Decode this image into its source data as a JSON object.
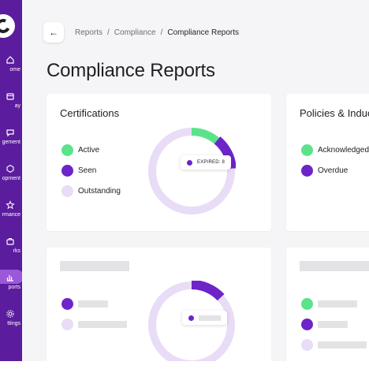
{
  "colors": {
    "sidebar": "#5b1c9e",
    "active_nav": "#9b59d9",
    "green": "#5be38c",
    "purple": "#6d24c9",
    "lavender": "#e8dcf6",
    "skeleton": "#e3e3e6"
  },
  "sidebar": {
    "logo_icon": "brand-logo",
    "items": [
      {
        "label": "ome",
        "icon": "home-icon"
      },
      {
        "label": "ay",
        "icon": "calendar-icon"
      },
      {
        "label": "gement",
        "icon": "chat-icon"
      },
      {
        "label": "opment",
        "icon": "cube-icon"
      },
      {
        "label": "rmance",
        "icon": "star-icon"
      },
      {
        "label": "rks",
        "icon": "briefcase-icon"
      },
      {
        "label": "ports",
        "icon": "reports-icon",
        "active": true
      },
      {
        "label": "ttings",
        "icon": "gear-icon"
      }
    ]
  },
  "header": {
    "back_icon": "arrow-left-icon",
    "breadcrumb": [
      "Reports",
      "Compliance",
      "Compliance Reports"
    ],
    "separator": "/",
    "title": "Compliance Reports"
  },
  "cards": {
    "certifications": {
      "title": "Certifications",
      "legend": [
        {
          "label": "Active",
          "color": "#5be38c"
        },
        {
          "label": "Seen",
          "color": "#6d24c9"
        },
        {
          "label": "Outstanding",
          "color": "#e8dcf6"
        }
      ],
      "tooltip": "EXPIRED: 8"
    },
    "policies": {
      "title": "Policies & Induc",
      "legend": [
        {
          "label": "Acknowledged",
          "color": "#5be38c"
        },
        {
          "label": "Overdue",
          "color": "#6d24c9"
        }
      ]
    }
  },
  "chart_data": [
    {
      "type": "pie",
      "title": "Certifications",
      "categories": [
        "Active",
        "Seen",
        "Outstanding"
      ],
      "values": [
        11,
        13,
        76
      ],
      "unit": "percent of ring",
      "annotation": "EXPIRED: 8"
    }
  ]
}
